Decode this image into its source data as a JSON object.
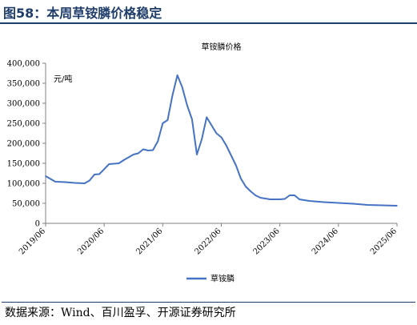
{
  "figure": {
    "title": "图58：本周草铵膦价格稳定",
    "source": "数据来源：Wind、百川盈孚、开源证券研究所"
  },
  "chart_data": {
    "type": "line",
    "title": "草铵膦价格",
    "ylabel": "元/吨",
    "xlabel": "",
    "ylim": [
      0,
      400000
    ],
    "y_ticks": [
      "0",
      "50,000",
      "100,000",
      "150,000",
      "200,000",
      "250,000",
      "300,000",
      "350,000",
      "400,000"
    ],
    "x_ticks": [
      "2019/06",
      "2020/06",
      "2021/06",
      "2022/06",
      "2023/06",
      "2024/06",
      "2025/06"
    ],
    "grid": false,
    "legend": "bottom-center",
    "color": "#4472c4",
    "series": [
      {
        "name": "草铵膦",
        "x": [
          "2019/06",
          "2019/08",
          "2019/10",
          "2019/12",
          "2020/02",
          "2020/03",
          "2020/04",
          "2020/05",
          "2020/07",
          "2020/09",
          "2020/10",
          "2020/12",
          "2021/01",
          "2021/02",
          "2021/03",
          "2021/04",
          "2021/05",
          "2021/06",
          "2021/07",
          "2021/08",
          "2021/09",
          "2021/10",
          "2021/11",
          "2021/12",
          "2022/01",
          "2022/02",
          "2022/03",
          "2022/04",
          "2022/05",
          "2022/06",
          "2022/07",
          "2022/08",
          "2022/09",
          "2022/10",
          "2022/11",
          "2022/12",
          "2023/01",
          "2023/02",
          "2023/03",
          "2023/04",
          "2023/05",
          "2023/06",
          "2023/07",
          "2023/08",
          "2023/09",
          "2023/10",
          "2023/11",
          "2023/12",
          "2024/01",
          "2024/02",
          "2024/03",
          "2024/06",
          "2024/09",
          "2024/12",
          "2025/03",
          "2025/06"
        ],
        "values": [
          118000,
          104000,
          103000,
          101000,
          100000,
          107000,
          122000,
          123000,
          148000,
          150000,
          158000,
          172000,
          175000,
          185000,
          182000,
          183000,
          205000,
          250000,
          258000,
          320000,
          370000,
          340000,
          295000,
          260000,
          172000,
          210000,
          265000,
          245000,
          225000,
          215000,
          195000,
          170000,
          145000,
          112000,
          92000,
          80000,
          70000,
          64000,
          62000,
          60000,
          60000,
          60000,
          61000,
          70000,
          70000,
          60000,
          58000,
          56000,
          55000,
          54000,
          53000,
          51000,
          49000,
          46000,
          45000,
          44000
        ]
      }
    ]
  }
}
